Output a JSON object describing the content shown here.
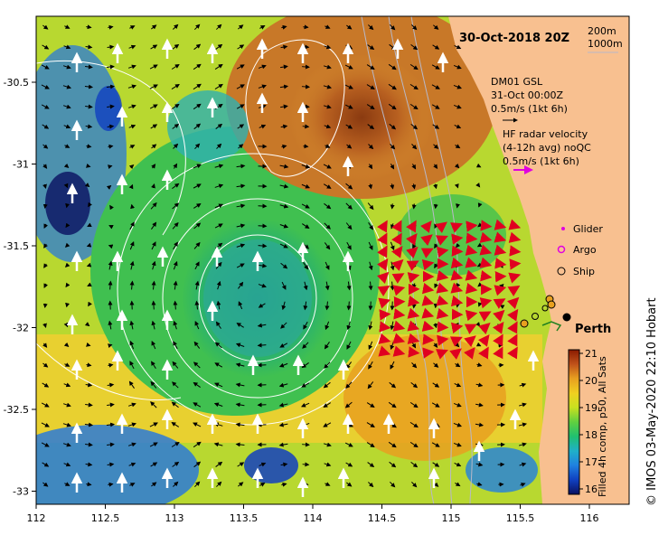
{
  "map": {
    "title": "30-Oct-2018 20Z",
    "depth_labels": [
      "200m",
      "1000m"
    ],
    "current_ref": {
      "source": "DM01 GSL",
      "time": "31-Oct 00:00Z",
      "scale": "0.5m/s (1kt 6h)"
    },
    "hf_radar": {
      "title": "HF radar velocity",
      "subtitle": "(4-12h avg) noQC",
      "scale": "0.5m/s (1kt 6h)"
    },
    "legend": [
      {
        "label": "Glider",
        "color": "#e000e0",
        "symbol": "dot"
      },
      {
        "label": "Argo",
        "color": "#e000e0",
        "symbol": "ring"
      },
      {
        "label": "Ship",
        "color": "#000000",
        "symbol": "ring"
      }
    ],
    "place_label": "Perth",
    "colorbar": {
      "label": "Filled 4h comp, p50, All Sats",
      "ticks": [
        "21",
        "20",
        "19",
        "18",
        "17",
        "16"
      ],
      "colors": [
        "#8a1a00",
        "#c0521a",
        "#e8a020",
        "#f0d020",
        "#c8e020",
        "#60d040",
        "#20c070",
        "#20b0c8",
        "#2080e0",
        "#1040c0",
        "#0a1060"
      ]
    },
    "credit": "© IMOS 03-May-2020 22:10 Hobart",
    "x_ticks": [
      "112",
      "112.5",
      "113",
      "113.5",
      "114",
      "114.5",
      "115",
      "115.5",
      "116"
    ],
    "y_ticks": [
      "-30.5",
      "-31",
      "-31.5",
      "-32",
      "-32.5",
      "-33"
    ],
    "colors": {
      "land": "#f8c090",
      "ocean_mid": "#30c060",
      "eddy_core": "#20a080",
      "warm_north": "#b85a20",
      "contour": "#ffffff",
      "radar_arrow": "#e00020",
      "ref_arrow": "#000000",
      "hf_ref_arrow": "#e000e0"
    }
  }
}
